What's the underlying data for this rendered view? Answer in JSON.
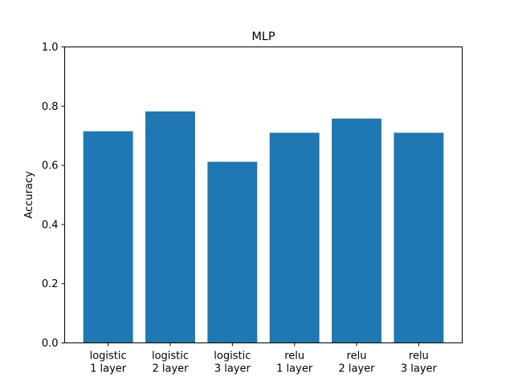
{
  "chart_data": {
    "type": "bar",
    "title": "MLP",
    "xlabel": "",
    "ylabel": "Accuracy",
    "categories": [
      [
        "logistic",
        "1 layer"
      ],
      [
        "logistic",
        "2 layer"
      ],
      [
        "logistic",
        "3 layer"
      ],
      [
        "relu",
        "1 layer"
      ],
      [
        "relu",
        "2 layer"
      ],
      [
        "relu",
        "3 layer"
      ]
    ],
    "values": [
      0.715,
      0.782,
      0.612,
      0.71,
      0.758,
      0.71
    ],
    "ylim": [
      0,
      1.0
    ],
    "yticks": [
      "0.0",
      "0.2",
      "0.4",
      "0.6",
      "0.8",
      "1.0"
    ],
    "bar_color": "#1f77b4",
    "grid": false,
    "legend": "none"
  }
}
